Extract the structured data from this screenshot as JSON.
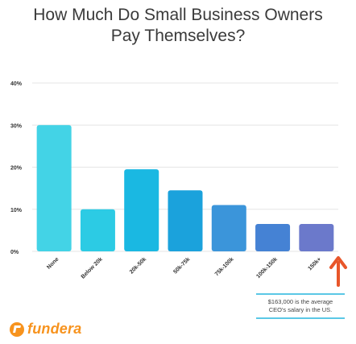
{
  "title_line1": "How Much Do Small Business Owners",
  "title_line2": "Pay Themselves?",
  "brand": {
    "logo_text": "fundera",
    "color": "#f7931e"
  },
  "annotation": {
    "line1": "$163,000 is the average",
    "line2": "CEO's salary in the US.",
    "arrow_color": "#e8562a",
    "border_color": "#5bc8e6"
  },
  "chart_data": {
    "type": "bar",
    "categories": [
      "None",
      "Below 20k",
      "20k-50k",
      "50k-75k",
      "75k-100k",
      "100k-150k",
      "150k+"
    ],
    "values": [
      30,
      10,
      19.5,
      14.5,
      11,
      6.5,
      6.5
    ],
    "colors": [
      "#43d3e6",
      "#2ccbe4",
      "#1ab8e2",
      "#1ba2dc",
      "#3b95da",
      "#4582d4",
      "#6b79cb"
    ],
    "ylim": [
      0,
      40
    ],
    "yticks": [
      "0%",
      "10%",
      "20%",
      "30%",
      "40%"
    ],
    "grid": true
  }
}
